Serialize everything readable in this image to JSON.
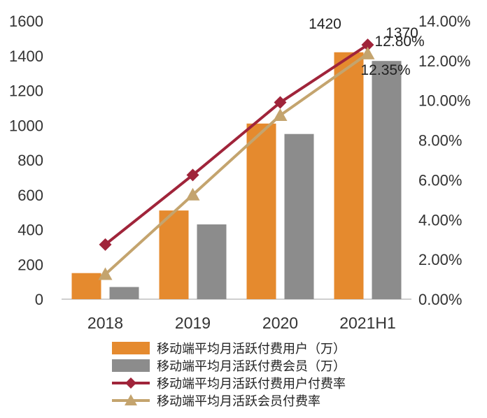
{
  "chart_data": {
    "type": "bar",
    "categories": [
      "2018",
      "2019",
      "2020",
      "2021H1"
    ],
    "y_left": {
      "range": [
        0,
        1600
      ],
      "ticks": [
        "0",
        "200",
        "400",
        "600",
        "800",
        "1000",
        "1200",
        "1400",
        "1600"
      ]
    },
    "y_right": {
      "range": [
        0,
        14
      ],
      "ticks": [
        "0.00%",
        "2.00%",
        "4.00%",
        "6.00%",
        "8.00%",
        "10.00%",
        "12.00%",
        "14.00%"
      ]
    },
    "series": [
      {
        "name": "移动端平均月活跃付费用户（万）",
        "type": "bar",
        "axis": "left",
        "color": "#E58A2E",
        "values": [
          150,
          510,
          1010,
          1420
        ],
        "labels": [
          "",
          "",
          "",
          "1420"
        ]
      },
      {
        "name": "移动端平均月活跃付费会员（万）",
        "type": "bar",
        "axis": "left",
        "color": "#8C8C8C",
        "values": [
          70,
          430,
          950,
          1370
        ],
        "labels": [
          "",
          "",
          "",
          "1370"
        ]
      },
      {
        "name": "移动端平均月活跃付费用户付费率",
        "type": "line",
        "axis": "right",
        "color": "#A0243A",
        "marker": "diamond",
        "values": [
          2.75,
          6.25,
          9.9,
          12.8
        ],
        "labels": [
          "",
          "",
          "",
          "12.80%"
        ]
      },
      {
        "name": "移动端平均月活跃会员付费率",
        "type": "line",
        "axis": "right",
        "color": "#C4A46E",
        "marker": "triangle",
        "values": [
          1.25,
          5.25,
          9.25,
          12.35
        ],
        "labels": [
          "",
          "",
          "",
          "12.35%"
        ]
      }
    ],
    "legend_position": "bottom",
    "grid": false
  }
}
